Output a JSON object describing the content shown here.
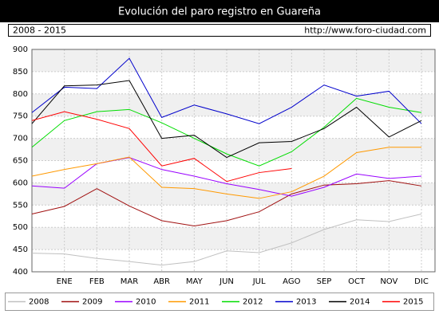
{
  "chart_data": {
    "type": "line",
    "title": "Evolución del paro registro en Guareña",
    "subtitle": "2008 - 2015",
    "source": "http://www.foro-ciudad.com",
    "categories": [
      null,
      "ENE",
      "FEB",
      "MAR",
      "ABR",
      "MAY",
      "JUN",
      "JUL",
      "AGO",
      "SEP",
      "OCT",
      "NOV",
      "DIC"
    ],
    "ylim": [
      400,
      900
    ],
    "yticks": [
      400,
      450,
      500,
      550,
      600,
      650,
      700,
      750,
      800,
      850,
      900
    ],
    "grid": true,
    "legend": "bottom",
    "series": [
      {
        "name": "2008",
        "color": "#c0c0c0",
        "values": [
          442,
          440,
          430,
          423,
          415,
          423,
          447,
          443,
          465,
          495,
          517,
          513,
          530
        ]
      },
      {
        "name": "2009",
        "color": "#a01010",
        "values": [
          530,
          547,
          587,
          548,
          515,
          503,
          515,
          535,
          575,
          595,
          598,
          605,
          593
        ]
      },
      {
        "name": "2010",
        "color": "#9900ff",
        "values": [
          593,
          588,
          643,
          657,
          630,
          615,
          598,
          585,
          570,
          590,
          620,
          610,
          615
        ]
      },
      {
        "name": "2011",
        "color": "#ff9900",
        "values": [
          615,
          630,
          643,
          658,
          590,
          587,
          575,
          565,
          580,
          615,
          668,
          680,
          680
        ]
      },
      {
        "name": "2012",
        "color": "#00dd00",
        "values": [
          680,
          740,
          760,
          765,
          735,
          700,
          665,
          638,
          670,
          725,
          790,
          770,
          758
        ]
      },
      {
        "name": "2013",
        "color": "#0000cc",
        "values": [
          758,
          815,
          812,
          880,
          747,
          775,
          755,
          733,
          770,
          820,
          795,
          806,
          733
        ]
      },
      {
        "name": "2014",
        "color": "#000000",
        "values": [
          733,
          818,
          820,
          830,
          700,
          707,
          657,
          690,
          693,
          722,
          770,
          703,
          740
        ]
      },
      {
        "name": "2015",
        "color": "#ff0000",
        "values": [
          740,
          760,
          743,
          722,
          638,
          655,
          603,
          623,
          632,
          null,
          null,
          null,
          null
        ]
      }
    ]
  }
}
